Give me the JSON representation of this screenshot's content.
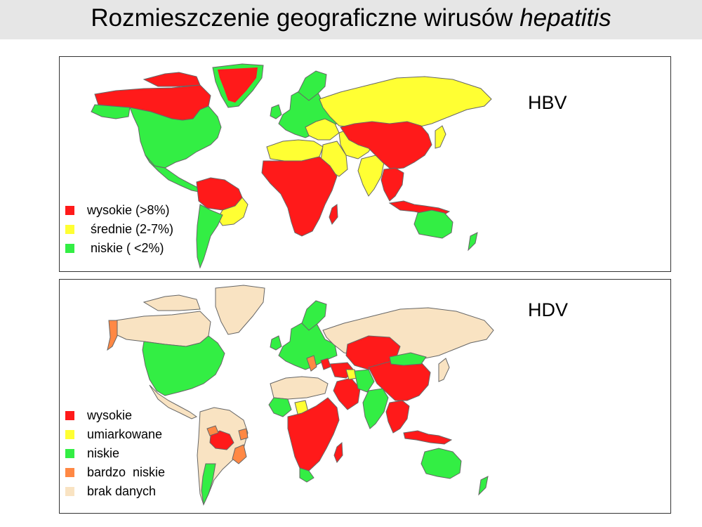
{
  "title": {
    "main": "Rozmieszczenie geograficzne wirusów",
    "italic": "hepatitis"
  },
  "maps": [
    {
      "label": "HBV",
      "legend": [
        {
          "color": "#ff1a1a",
          "text": "wysokie (>8%)"
        },
        {
          "color": "#ffff33",
          "text": " średnie (2-7%)"
        },
        {
          "color": "#33ee44",
          "text": " niskie ( <2%)"
        }
      ]
    },
    {
      "label": "HDV",
      "legend": [
        {
          "color": "#ff1a1a",
          "text": "wysokie"
        },
        {
          "color": "#ffff33",
          "text": "umiarkowane"
        },
        {
          "color": "#33ee44",
          "text": "niskie"
        },
        {
          "color": "#ff8844",
          "text": "bardzo  niskie"
        },
        {
          "color": "#f9e3c2",
          "text": "brak danych"
        }
      ]
    }
  ],
  "colors": {
    "high": "#ff1a1a",
    "medium": "#ffff33",
    "low": "#33ee44",
    "very_low": "#ff8844",
    "no_data": "#f9e3c2",
    "border": "#666666"
  }
}
